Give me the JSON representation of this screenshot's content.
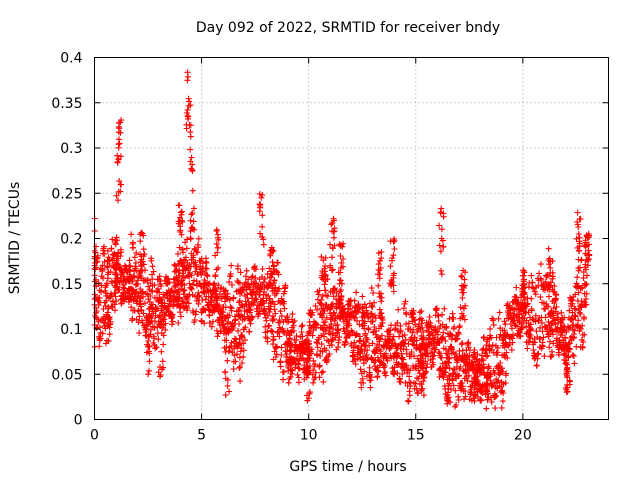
{
  "chart_data": {
    "type": "scatter",
    "title": "Day 092 of 2022, SRMTID for receiver bndy",
    "xlabel": "GPS time / hours",
    "ylabel": "SRMTID / TECUs",
    "xlim": [
      0,
      24
    ],
    "ylim": [
      0,
      0.4
    ],
    "xticks": [
      0,
      5,
      10,
      15,
      20
    ],
    "yticks": [
      0,
      0.05,
      0.1,
      0.15,
      0.2,
      0.25,
      0.3,
      0.35,
      0.4
    ],
    "xtick_labels": [
      "0",
      "5",
      "10",
      "15",
      "20"
    ],
    "ytick_labels": [
      "0",
      "0.05",
      "0.1",
      "0.15",
      "0.2",
      "0.25",
      "0.3",
      "0.35",
      "0.4"
    ],
    "grid": true,
    "marker": "+",
    "color": "#ff0000",
    "trend": [
      [
        0.0,
        0.14
      ],
      [
        0.5,
        0.13
      ],
      [
        1.0,
        0.16
      ],
      [
        1.5,
        0.15
      ],
      [
        2.0,
        0.14
      ],
      [
        2.5,
        0.13
      ],
      [
        3.0,
        0.12
      ],
      [
        3.5,
        0.13
      ],
      [
        4.0,
        0.15
      ],
      [
        4.5,
        0.17
      ],
      [
        5.0,
        0.15
      ],
      [
        5.5,
        0.13
      ],
      [
        6.0,
        0.12
      ],
      [
        6.5,
        0.11
      ],
      [
        7.0,
        0.12
      ],
      [
        7.5,
        0.14
      ],
      [
        8.0,
        0.13
      ],
      [
        8.5,
        0.12
      ],
      [
        9.0,
        0.09
      ],
      [
        9.5,
        0.07
      ],
      [
        10.0,
        0.08
      ],
      [
        10.5,
        0.09
      ],
      [
        11.0,
        0.11
      ],
      [
        11.5,
        0.12
      ],
      [
        12.0,
        0.1
      ],
      [
        12.5,
        0.09
      ],
      [
        13.0,
        0.09
      ],
      [
        13.5,
        0.08
      ],
      [
        14.0,
        0.08
      ],
      [
        14.5,
        0.075
      ],
      [
        15.0,
        0.075
      ],
      [
        15.5,
        0.08
      ],
      [
        16.0,
        0.09
      ],
      [
        16.5,
        0.065
      ],
      [
        17.0,
        0.06
      ],
      [
        17.5,
        0.05
      ],
      [
        18.0,
        0.05
      ],
      [
        18.5,
        0.055
      ],
      [
        19.0,
        0.06
      ],
      [
        19.5,
        0.11
      ],
      [
        20.0,
        0.12
      ],
      [
        20.5,
        0.11
      ],
      [
        21.0,
        0.12
      ],
      [
        21.5,
        0.11
      ],
      [
        22.0,
        0.08
      ],
      [
        22.5,
        0.12
      ],
      [
        23.0,
        0.15
      ]
    ],
    "bursts": [
      [
        0.0,
        0.07,
        0.225
      ],
      [
        0.6,
        0.09,
        0.2
      ],
      [
        1.0,
        0.15,
        0.26
      ],
      [
        1.15,
        0.25,
        0.333
      ],
      [
        1.7,
        0.13,
        0.22
      ],
      [
        2.2,
        0.12,
        0.21
      ],
      [
        2.6,
        0.04,
        0.16
      ],
      [
        3.1,
        0.04,
        0.15
      ],
      [
        4.0,
        0.17,
        0.24
      ],
      [
        4.4,
        0.28,
        0.385
      ],
      [
        4.55,
        0.2,
        0.3
      ],
      [
        5.7,
        0.12,
        0.21
      ],
      [
        6.2,
        0.02,
        0.12
      ],
      [
        6.8,
        0.04,
        0.14
      ],
      [
        7.8,
        0.19,
        0.263
      ],
      [
        8.3,
        0.12,
        0.19
      ],
      [
        9.2,
        0.03,
        0.1
      ],
      [
        10.0,
        0.02,
        0.08
      ],
      [
        10.7,
        0.13,
        0.18
      ],
      [
        11.1,
        0.16,
        0.232
      ],
      [
        11.5,
        0.12,
        0.2
      ],
      [
        12.6,
        0.04,
        0.12
      ],
      [
        13.3,
        0.13,
        0.19
      ],
      [
        13.9,
        0.14,
        0.2
      ],
      [
        15.3,
        0.02,
        0.09
      ],
      [
        16.2,
        0.16,
        0.24
      ],
      [
        16.5,
        0.02,
        0.07
      ],
      [
        17.2,
        0.11,
        0.17
      ],
      [
        17.8,
        0.02,
        0.06
      ],
      [
        18.4,
        0.02,
        0.09
      ],
      [
        20.0,
        0.13,
        0.165
      ],
      [
        21.3,
        0.14,
        0.19
      ],
      [
        22.1,
        0.03,
        0.08
      ],
      [
        22.6,
        0.18,
        0.235
      ],
      [
        23.0,
        0.17,
        0.21
      ]
    ]
  }
}
